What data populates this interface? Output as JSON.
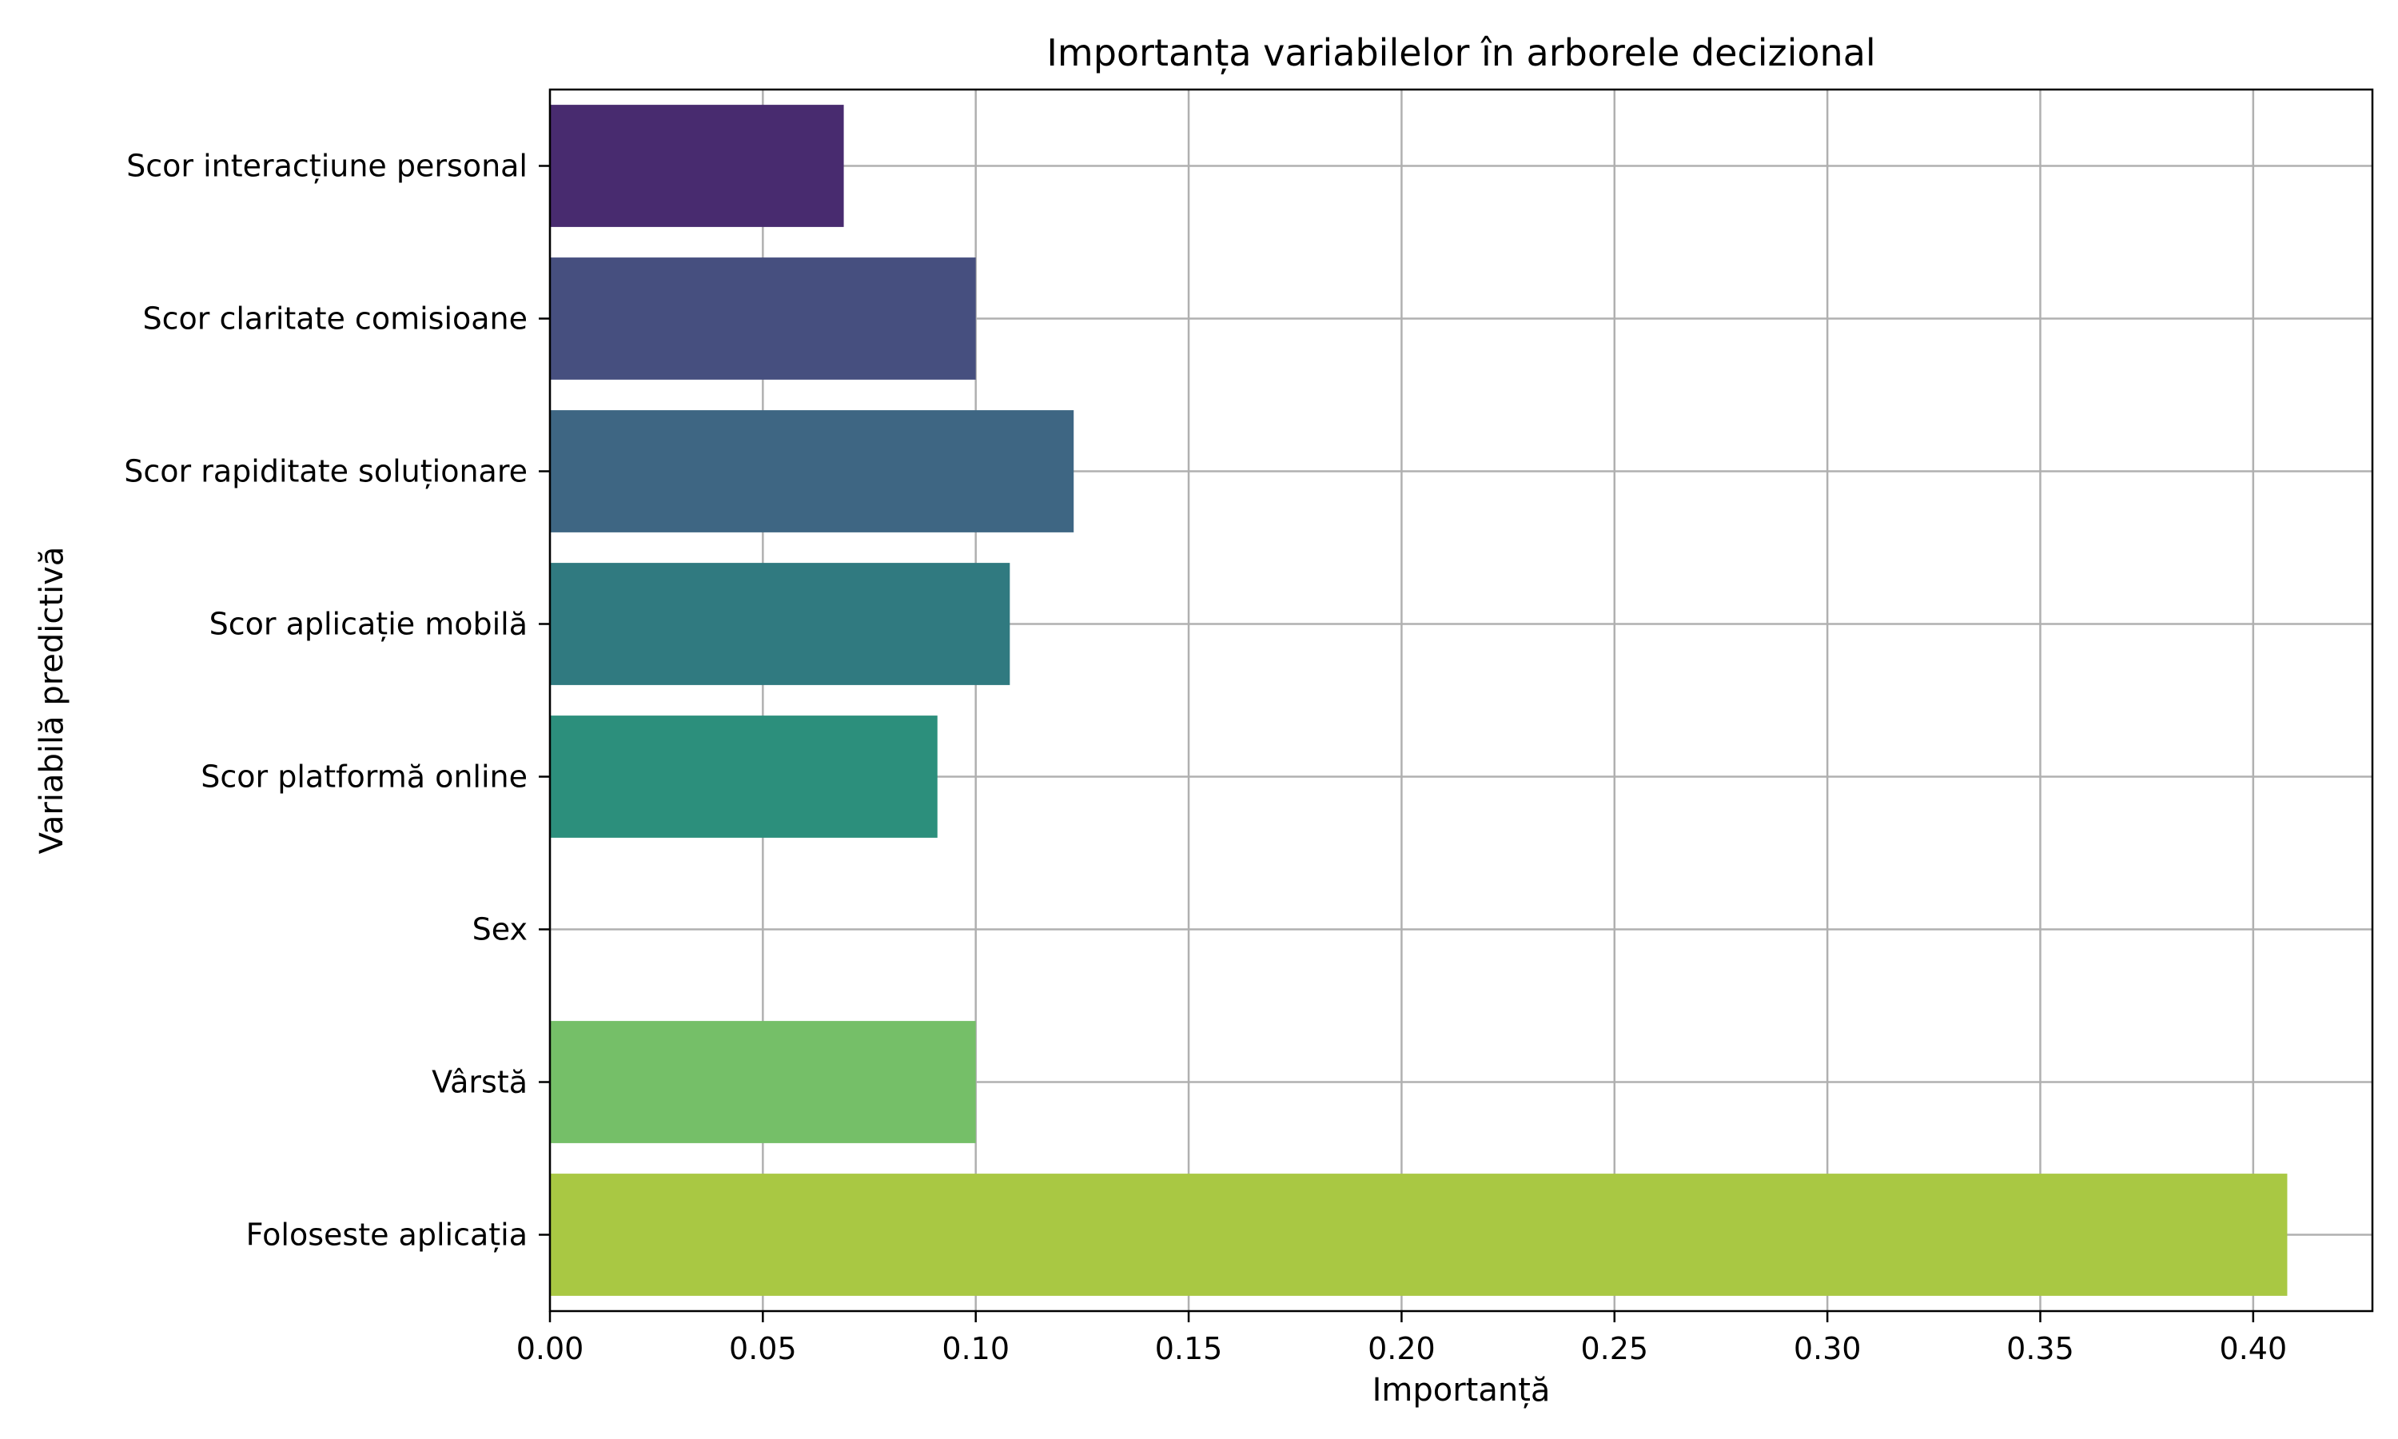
{
  "chart_data": {
    "type": "bar",
    "orientation": "horizontal",
    "title": "Importanța variabilelor în arborele decizional",
    "xlabel": "Importanță",
    "ylabel": "Variabilă predictivă",
    "categories": [
      "Scor interacțiune personal",
      "Scor claritate comisioane",
      "Scor rapiditate soluționare",
      "Scor aplicație mobilă",
      "Scor platformă online",
      "Sex",
      "Vârstă",
      "Foloseste aplicația"
    ],
    "values": [
      0.069,
      0.1,
      0.123,
      0.108,
      0.091,
      0.0,
      0.1,
      0.408
    ],
    "colors": [
      "#482b6f",
      "#464f7f",
      "#3e6683",
      "#307a80",
      "#2c8f7c",
      "#3ba873",
      "#75bf68",
      "#a9c843"
    ],
    "xlim": [
      0,
      0.428
    ],
    "xticks": [
      0.0,
      0.05,
      0.1,
      0.15,
      0.2,
      0.25,
      0.3,
      0.35,
      0.4
    ],
    "xtick_labels": [
      "0.00",
      "0.05",
      "0.10",
      "0.15",
      "0.20",
      "0.25",
      "0.30",
      "0.35",
      "0.40"
    ],
    "grid": true,
    "legend": "none"
  }
}
